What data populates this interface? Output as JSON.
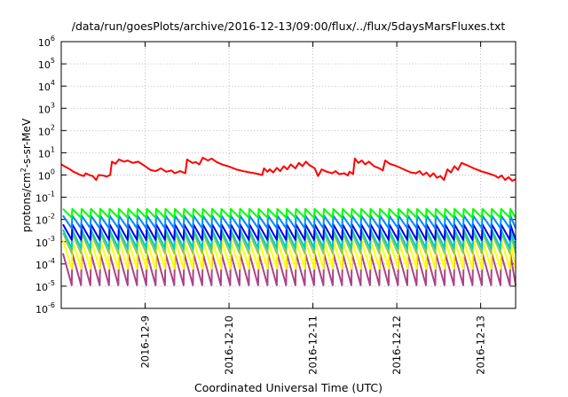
{
  "chart_data": {
    "type": "line",
    "title": "/data/run/goesPlots/archive/2016-12-13/09:00/flux/../flux/5daysMarsFluxes.txt",
    "xlabel": "Coordinated Universal Time (UTC)",
    "ylabel_parts": [
      "protons/cm",
      "2",
      "-s-sr-MeV"
    ],
    "x_scale": "time",
    "xlim": [
      "2016-12-08 00:00",
      "2016-12-13 10:00"
    ],
    "x_ticks": [
      "2016-12-9",
      "2016-12-10",
      "2016-12-11",
      "2016-12-12",
      "2016-12-13"
    ],
    "x_tick_dates": [
      "2016-12-09",
      "2016-12-10",
      "2016-12-11",
      "2016-12-12",
      "2016-12-13"
    ],
    "y_scale": "log",
    "ylim": [
      1e-06,
      1000000.0
    ],
    "y_ticks": [
      {
        "value": 1000000.0,
        "base": "10",
        "exp": "6"
      },
      {
        "value": 100000.0,
        "base": "10",
        "exp": "5"
      },
      {
        "value": 10000.0,
        "base": "10",
        "exp": "4"
      },
      {
        "value": 1000.0,
        "base": "10",
        "exp": "3"
      },
      {
        "value": 100.0,
        "base": "10",
        "exp": "2"
      },
      {
        "value": 10.0,
        "base": "10",
        "exp": "1"
      },
      {
        "value": 1.0,
        "base": "10",
        "exp": "0"
      },
      {
        "value": 0.1,
        "base": "10",
        "exp": "-1"
      },
      {
        "value": 0.01,
        "base": "10",
        "exp": "-2"
      },
      {
        "value": 0.001,
        "base": "10",
        "exp": "-3"
      },
      {
        "value": 0.0001,
        "base": "10",
        "exp": "-4"
      },
      {
        "value": 1e-05,
        "base": "10",
        "exp": "-5"
      },
      {
        "value": 1e-06,
        "base": "10",
        "exp": "-6"
      }
    ],
    "grid": {
      "horizontal": true,
      "vertical": true,
      "style": "dotted"
    },
    "legend": "none",
    "sawtooth_series": [
      {
        "color": "#00ff00",
        "peak": 0.03,
        "trough": 0.012
      },
      {
        "color": "#0088ff",
        "peak": 0.015,
        "trough": 0.004
      },
      {
        "color": "#0000ee",
        "peak": 0.006,
        "trough": 0.0012
      },
      {
        "color": "#00cccc",
        "peak": 0.0035,
        "trough": 0.0005
      },
      {
        "color": "#88cc44",
        "peak": 0.0025,
        "trough": 0.0003
      },
      {
        "color": "#ffff00",
        "peak": 0.0012,
        "trough": 6e-05
      },
      {
        "color": "#aa4488",
        "peak": 0.0003,
        "trough": 1.1e-05
      }
    ],
    "sawtooth_peaks": [
      "2016-12-08 00:30",
      "2016-12-08 03:10",
      "2016-12-08 05:50",
      "2016-12-08 08:30",
      "2016-12-08 11:10",
      "2016-12-08 13:50",
      "2016-12-08 16:30",
      "2016-12-08 19:10",
      "2016-12-08 21:50",
      "2016-12-09 00:30",
      "2016-12-09 03:10",
      "2016-12-09 05:50",
      "2016-12-09 08:30",
      "2016-12-09 11:10",
      "2016-12-09 13:50",
      "2016-12-09 16:30",
      "2016-12-09 19:10",
      "2016-12-09 21:50",
      "2016-12-10 00:30",
      "2016-12-10 03:10",
      "2016-12-10 05:50",
      "2016-12-10 08:30",
      "2016-12-10 11:10",
      "2016-12-10 13:50",
      "2016-12-10 16:30",
      "2016-12-10 19:10",
      "2016-12-10 21:50",
      "2016-12-11 00:30",
      "2016-12-11 03:10",
      "2016-12-11 05:50",
      "2016-12-11 08:30",
      "2016-12-11 11:10",
      "2016-12-11 13:50",
      "2016-12-11 16:30",
      "2016-12-11 19:10",
      "2016-12-11 21:50",
      "2016-12-12 00:30",
      "2016-12-12 03:10",
      "2016-12-12 05:50",
      "2016-12-12 08:30",
      "2016-12-12 11:10",
      "2016-12-12 13:50",
      "2016-12-12 16:30",
      "2016-12-12 19:10",
      "2016-12-12 21:50",
      "2016-12-13 00:30",
      "2016-12-13 03:10",
      "2016-12-13 05:50",
      "2016-12-13 08:30"
    ],
    "series": [
      {
        "color": "#ff0000",
        "points": [
          [
            "2016-12-08 00:00",
            3.0
          ],
          [
            "2016-12-08 01:30",
            2.2
          ],
          [
            "2016-12-08 02:30",
            1.8
          ],
          [
            "2016-12-08 03:30",
            1.4
          ],
          [
            "2016-12-08 04:30",
            1.2
          ],
          [
            "2016-12-08 05:30",
            1.0
          ],
          [
            "2016-12-08 06:30",
            0.9
          ],
          [
            "2016-12-08 07:00",
            1.2
          ],
          [
            "2016-12-08 08:00",
            1.0
          ],
          [
            "2016-12-08 09:00",
            0.9
          ],
          [
            "2016-12-08 10:00",
            0.6
          ],
          [
            "2016-12-08 10:40",
            1.0
          ],
          [
            "2016-12-08 12:00",
            0.95
          ],
          [
            "2016-12-08 13:00",
            0.85
          ],
          [
            "2016-12-08 14:00",
            1.0
          ],
          [
            "2016-12-08 14:30",
            4.0
          ],
          [
            "2016-12-08 15:30",
            3.2
          ],
          [
            "2016-12-08 16:30",
            5.0
          ],
          [
            "2016-12-08 18:00",
            4.0
          ],
          [
            "2016-12-08 19:00",
            4.5
          ],
          [
            "2016-12-08 20:30",
            3.5
          ],
          [
            "2016-12-08 22:00",
            4.0
          ],
          [
            "2016-12-09 00:00",
            2.5
          ],
          [
            "2016-12-09 01:30",
            1.7
          ],
          [
            "2016-12-09 03:00",
            1.5
          ],
          [
            "2016-12-09 04:30",
            2.0
          ],
          [
            "2016-12-09 06:00",
            1.4
          ],
          [
            "2016-12-09 07:30",
            1.6
          ],
          [
            "2016-12-09 08:30",
            1.2
          ],
          [
            "2016-12-09 10:00",
            1.5
          ],
          [
            "2016-12-09 11:30",
            1.2
          ],
          [
            "2016-12-09 12:00",
            5.0
          ],
          [
            "2016-12-09 13:30",
            3.5
          ],
          [
            "2016-12-09 14:30",
            3.8
          ],
          [
            "2016-12-09 15:30",
            3.0
          ],
          [
            "2016-12-09 16:30",
            6.0
          ],
          [
            "2016-12-09 18:00",
            4.5
          ],
          [
            "2016-12-09 19:00",
            5.5
          ],
          [
            "2016-12-09 20:30",
            3.8
          ],
          [
            "2016-12-09 22:00",
            3.0
          ],
          [
            "2016-12-10 00:00",
            2.4
          ],
          [
            "2016-12-10 02:00",
            1.8
          ],
          [
            "2016-12-10 04:00",
            1.5
          ],
          [
            "2016-12-10 06:00",
            1.3
          ],
          [
            "2016-12-10 08:00",
            1.15
          ],
          [
            "2016-12-10 09:30",
            1.0
          ],
          [
            "2016-12-10 10:00",
            2.0
          ],
          [
            "2016-12-10 11:00",
            1.4
          ],
          [
            "2016-12-10 11:40",
            1.8
          ],
          [
            "2016-12-10 12:40",
            1.3
          ],
          [
            "2016-12-10 13:40",
            2.1
          ],
          [
            "2016-12-10 14:40",
            1.5
          ],
          [
            "2016-12-10 15:40",
            2.5
          ],
          [
            "2016-12-10 16:40",
            1.8
          ],
          [
            "2016-12-10 17:40",
            3.0
          ],
          [
            "2016-12-10 19:00",
            2.0
          ],
          [
            "2016-12-10 20:00",
            3.5
          ],
          [
            "2016-12-10 21:00",
            2.5
          ],
          [
            "2016-12-10 22:00",
            4.0
          ],
          [
            "2016-12-10 23:00",
            2.8
          ],
          [
            "2016-12-11 00:30",
            2.0
          ],
          [
            "2016-12-11 01:30",
            0.9
          ],
          [
            "2016-12-11 02:30",
            1.8
          ],
          [
            "2016-12-11 04:00",
            1.4
          ],
          [
            "2016-12-11 05:30",
            1.2
          ],
          [
            "2016-12-11 06:30",
            1.5
          ],
          [
            "2016-12-11 07:30",
            1.1
          ],
          [
            "2016-12-11 09:00",
            1.2
          ],
          [
            "2016-12-11 10:00",
            0.95
          ],
          [
            "2016-12-11 10:30",
            1.4
          ],
          [
            "2016-12-11 11:30",
            1.1
          ],
          [
            "2016-12-11 12:00",
            5.5
          ],
          [
            "2016-12-11 13:00",
            3.5
          ],
          [
            "2016-12-11 14:00",
            4.5
          ],
          [
            "2016-12-11 15:00",
            3.0
          ],
          [
            "2016-12-11 16:00",
            4.0
          ],
          [
            "2016-12-11 17:30",
            2.5
          ],
          [
            "2016-12-11 19:00",
            2.0
          ],
          [
            "2016-12-11 20:00",
            1.6
          ],
          [
            "2016-12-11 20:40",
            4.5
          ],
          [
            "2016-12-11 22:00",
            3.2
          ],
          [
            "2016-12-12 00:00",
            2.5
          ],
          [
            "2016-12-12 02:00",
            1.8
          ],
          [
            "2016-12-12 04:00",
            1.3
          ],
          [
            "2016-12-12 05:30",
            1.2
          ],
          [
            "2016-12-12 06:30",
            1.5
          ],
          [
            "2016-12-12 07:30",
            1.0
          ],
          [
            "2016-12-12 08:30",
            1.3
          ],
          [
            "2016-12-12 09:30",
            0.85
          ],
          [
            "2016-12-12 10:30",
            1.2
          ],
          [
            "2016-12-12 11:30",
            0.75
          ],
          [
            "2016-12-12 12:30",
            0.9
          ],
          [
            "2016-12-12 13:30",
            0.6
          ],
          [
            "2016-12-12 14:30",
            1.8
          ],
          [
            "2016-12-12 15:30",
            1.3
          ],
          [
            "2016-12-12 16:30",
            2.5
          ],
          [
            "2016-12-12 17:30",
            1.7
          ],
          [
            "2016-12-12 18:30",
            3.5
          ],
          [
            "2016-12-12 20:00",
            2.8
          ],
          [
            "2016-12-12 22:00",
            2.0
          ],
          [
            "2016-12-13 00:00",
            1.5
          ],
          [
            "2016-12-13 02:00",
            1.2
          ],
          [
            "2016-12-13 04:00",
            0.95
          ],
          [
            "2016-12-13 05:00",
            0.75
          ],
          [
            "2016-12-13 06:00",
            0.95
          ],
          [
            "2016-12-13 07:00",
            0.6
          ],
          [
            "2016-12-13 08:00",
            0.8
          ],
          [
            "2016-12-13 09:00",
            0.55
          ],
          [
            "2016-12-13 10:00",
            0.65
          ]
        ]
      }
    ]
  }
}
